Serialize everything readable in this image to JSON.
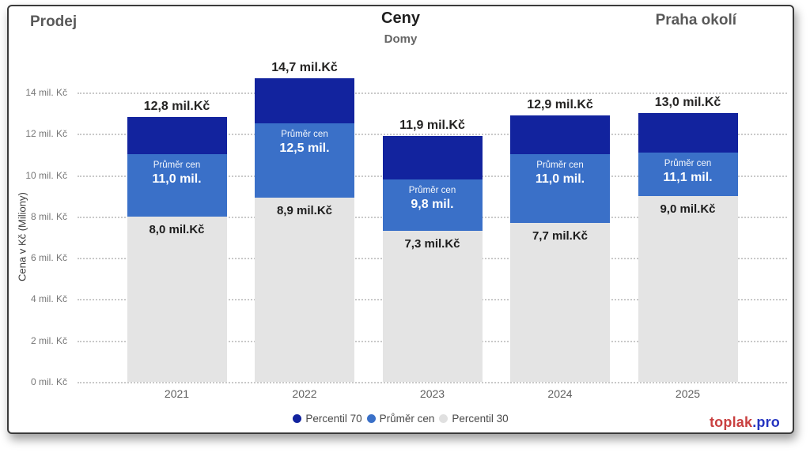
{
  "header": {
    "left": "Prodej",
    "title": "Ceny",
    "subtitle": "Domy",
    "right": "Praha okolí"
  },
  "chart_data": {
    "type": "bar",
    "subtype": "stacked-percentile-bands",
    "title": "Ceny",
    "subtitle": "Domy",
    "categories": [
      "2021",
      "2022",
      "2023",
      "2024",
      "2025"
    ],
    "series": [
      {
        "name": "Percentil 30",
        "values": [
          8.0,
          8.9,
          7.3,
          7.7,
          9.0
        ]
      },
      {
        "name": "Průměr cen",
        "values": [
          11.0,
          12.5,
          9.8,
          11.0,
          11.1
        ]
      },
      {
        "name": "Percentil 70",
        "values": [
          12.8,
          14.7,
          11.9,
          12.9,
          13.0
        ]
      }
    ],
    "values_are_cumulative": true,
    "value_labels": {
      "totals": [
        "12,8 mil.Kč",
        "14,7 mil.Kč",
        "11,9 mil.Kč",
        "12,9 mil.Kč",
        "13,0 mil.Kč"
      ],
      "avg_caption": "Průměr cen",
      "averages": [
        "11,0 mil.",
        "12,5 mil.",
        "9,8 mil.",
        "11,0 mil.",
        "11,1 mil."
      ],
      "p30": [
        "8,0 mil.Kč",
        "8,9 mil.Kč",
        "7,3 mil.Kč",
        "7,7 mil.Kč",
        "9,0 mil.Kč"
      ]
    },
    "xlabel": "",
    "ylabel": "Cena v Kč (Miliony)",
    "ylim": [
      0,
      14.7
    ],
    "ytick_values": [
      0,
      2,
      4,
      6,
      8,
      10,
      12,
      14
    ],
    "ytick_labels": [
      "0 mil. Kč",
      "2 mil. Kč",
      "4 mil. Kč",
      "6 mil. Kč",
      "8 mil. Kč",
      "10 mil. Kč",
      "12 mil. Kč",
      "14 mil. Kč"
    ],
    "grid": "horizontal-dotted",
    "legend_position": "bottom-center",
    "colors": {
      "percentil_30": "#e4e4e4",
      "prumer_cen": "#3a70c8",
      "percentil_70": "#12239e"
    }
  },
  "legend": {
    "items": [
      {
        "label": "Percentil 70",
        "color": "#12239e"
      },
      {
        "label": "Průměr cen",
        "color": "#3a70c8"
      },
      {
        "label": "Percentil 30",
        "color": "#e0e0e0"
      }
    ]
  },
  "branding": {
    "part1": "toplak",
    "part2": ".pro",
    "color1": "#c94040",
    "color2": "#2433c0"
  }
}
